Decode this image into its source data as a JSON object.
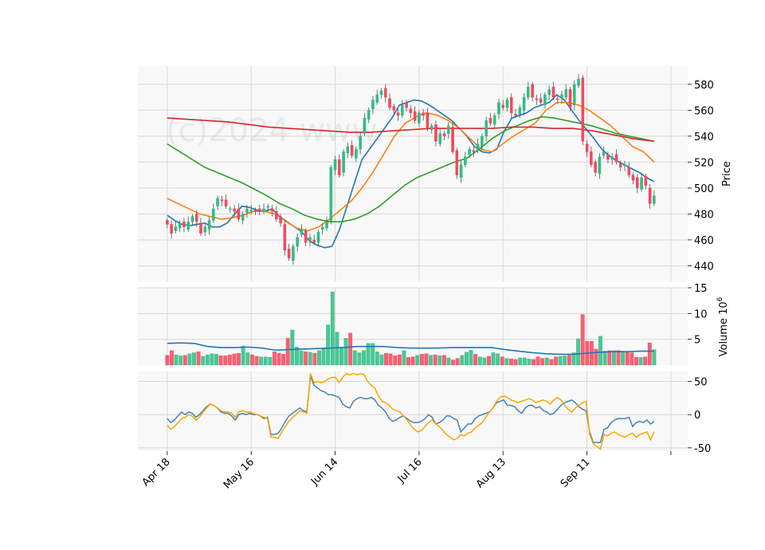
{
  "watermark": "(c)2024 www.",
  "chart_data": [
    {
      "type": "candlestick",
      "panel": "price",
      "ylabel": "Price",
      "ylim": [
        428,
        594
      ],
      "yticks": [
        440,
        460,
        480,
        500,
        520,
        540,
        560,
        580
      ],
      "xticks": [
        {
          "index": 0,
          "label": "Apr 18"
        },
        {
          "index": 20,
          "label": "May 16"
        },
        {
          "index": 40,
          "label": "Jun 14"
        },
        {
          "index": 60,
          "label": "Jul 16"
        },
        {
          "index": 80,
          "label": "Aug 13"
        },
        {
          "index": 100,
          "label": "Sep 11"
        },
        {
          "index": 120,
          "label": ""
        }
      ],
      "xlim": [
        -7,
        124
      ],
      "grid": true,
      "close": [
        472,
        465,
        470,
        473,
        470,
        474,
        478,
        474,
        465,
        470,
        475,
        484,
        492,
        490,
        486,
        484,
        482,
        476,
        480,
        484,
        483,
        482,
        483,
        484,
        486,
        482,
        476,
        473,
        452,
        446,
        455,
        462,
        468,
        458,
        462,
        458,
        466,
        470,
        474,
        516,
        522,
        510,
        528,
        532,
        525,
        530,
        540,
        554,
        560,
        568,
        572,
        575,
        570,
        562,
        560,
        556,
        564,
        562,
        558,
        552,
        558,
        556,
        546,
        548,
        536,
        542,
        540,
        548,
        528,
        510,
        518,
        524,
        530,
        528,
        534,
        540,
        552,
        550,
        556,
        566,
        562,
        568,
        558,
        556,
        562,
        570,
        578,
        570,
        568,
        566,
        572,
        576,
        570,
        568,
        572,
        576,
        562,
        580,
        584,
        536,
        528,
        518,
        512,
        524,
        528,
        522,
        524,
        520,
        516,
        518,
        510,
        506,
        500,
        508,
        502,
        488,
        494
      ],
      "ma": [
        {
          "color": "#1f77b4",
          "values": [
            479,
            475,
            472,
            471,
            472,
            473,
            470,
            470,
            473,
            480,
            486,
            485,
            483,
            482,
            484,
            478,
            474,
            470,
            466,
            459,
            456,
            454,
            455,
            468,
            486,
            504,
            522,
            530,
            538,
            546,
            554,
            564,
            566,
            568,
            567,
            564,
            560,
            556,
            552,
            546,
            540,
            532,
            528,
            527,
            530,
            544,
            554,
            556,
            558,
            562,
            564,
            566,
            572,
            568,
            560,
            552,
            545,
            538,
            530,
            525,
            521,
            518,
            515,
            512,
            508,
            505
          ]
        },
        {
          "color": "#ff7f0e",
          "values": [
            492,
            488,
            484,
            480,
            478,
            476,
            477,
            479,
            482,
            482,
            480,
            474,
            469,
            467,
            470,
            476,
            483,
            490,
            500,
            512,
            526,
            540,
            550,
            555,
            558,
            556,
            552,
            546,
            538,
            530,
            528,
            534,
            540,
            545,
            550,
            560,
            566,
            566,
            564,
            560,
            554,
            548,
            540,
            532,
            528,
            520
          ]
        },
        {
          "color": "#2ca02c",
          "values": [
            534,
            528,
            522,
            516,
            512,
            508,
            504,
            499,
            494,
            488,
            484,
            479,
            476,
            474,
            474,
            476,
            480,
            486,
            494,
            502,
            508,
            512,
            516,
            520,
            523,
            530,
            538,
            544,
            548,
            552,
            555,
            554,
            552,
            550,
            548,
            545,
            542,
            540,
            538,
            536
          ]
        },
        {
          "color": "#d62728",
          "values": [
            554,
            553,
            552,
            551,
            549,
            547,
            546,
            545,
            544,
            543,
            543,
            544,
            545,
            546,
            546,
            546,
            546,
            547,
            547,
            546,
            546,
            544,
            541,
            538,
            536
          ]
        }
      ]
    },
    {
      "type": "bar",
      "panel": "volume",
      "ylabel": "Volume  10",
      "ylabel_exponent": "6",
      "ylim": [
        0,
        15
      ],
      "yticks": [
        5,
        10,
        15
      ],
      "values": [
        1.9,
        2.8,
        2.0,
        1.8,
        1.9,
        2.2,
        2.4,
        2.6,
        1.7,
        2.0,
        2.2,
        2.1,
        1.8,
        1.8,
        2.0,
        2.2,
        2.3,
        3.7,
        2.4,
        2.0,
        1.7,
        1.6,
        1.6,
        1.5,
        2.6,
        2.3,
        2.1,
        5.2,
        6.8,
        3.5,
        2.8,
        2.6,
        2.5,
        2.3,
        2.8,
        3.2,
        7.8,
        14.2,
        6.4,
        3.5,
        5.2,
        6.2,
        2.8,
        2.4,
        2.8,
        4.2,
        4.2,
        2.6,
        2.0,
        2.3,
        2.2,
        1.8,
        2.0,
        2.8,
        1.5,
        1.6,
        1.9,
        2.1,
        2.2,
        1.9,
        2.0,
        1.8,
        1.9,
        1.4,
        1.0,
        1.3,
        1.9,
        2.5,
        2.9,
        2.1,
        1.6,
        1.4,
        1.7,
        2.4,
        2.2,
        1.6,
        1.3,
        1.2,
        1.1,
        1.4,
        1.4,
        1.2,
        1.1,
        1.6,
        1.3,
        1.4,
        1.1,
        1.6,
        1.7,
        1.8,
        1.9,
        2.4,
        5.1,
        9.8,
        4.6,
        4.6,
        3.1,
        5.6,
        2.7,
        2.8,
        2.8,
        2.8,
        2.7,
        2.5,
        2.4,
        1.5,
        1.5,
        1.6,
        4.3,
        3.0
      ],
      "up_color": "#2ebd85",
      "down_color": "#f6465d",
      "avg_line": [
        4.2,
        4.3,
        4.2,
        3.6,
        3.4,
        3.4,
        3.5,
        3.3,
        2.9,
        3.0,
        3.1,
        3.2,
        3.3,
        3.4,
        3.6,
        3.6,
        3.6,
        3.4,
        3.3,
        3.3,
        3.3,
        3.4,
        3.4,
        3.4,
        3.4,
        3.0,
        2.7,
        2.4,
        2.2,
        2.1,
        2.1,
        2.3,
        2.5,
        2.6,
        2.6,
        2.7,
        2.7
      ]
    },
    {
      "type": "line",
      "panel": "oscillator",
      "ylim": [
        -55,
        65
      ],
      "yticks": [
        -50,
        0,
        50
      ],
      "series": [
        {
          "color": "#4682b4",
          "values": [
            -6,
            -12,
            -8,
            -2,
            4,
            0,
            4,
            2,
            -4,
            0,
            6,
            12,
            16,
            14,
            10,
            4,
            2,
            2,
            -2,
            -8,
            0,
            2,
            0,
            2,
            0,
            0,
            -2,
            -6,
            -4,
            -30,
            -30,
            -28,
            -20,
            -10,
            -2,
            2,
            6,
            10,
            6,
            4,
            58,
            44,
            40,
            36,
            34,
            30,
            30,
            28,
            26,
            16,
            12,
            10,
            20,
            24,
            26,
            24,
            24,
            26,
            22,
            14,
            10,
            4,
            -6,
            -10,
            -8,
            -4,
            -2,
            -6,
            -10,
            -12,
            -12,
            -10,
            -6,
            0,
            -4,
            -14,
            -12,
            -8,
            -2,
            -2,
            -6,
            -8,
            -26,
            -20,
            -14,
            -14,
            -6,
            -2,
            0,
            2,
            4,
            10,
            18,
            20,
            22,
            14,
            14,
            12,
            6,
            2,
            10,
            14,
            14,
            10,
            12,
            6,
            4,
            0,
            2,
            8,
            14,
            18,
            20,
            22,
            18,
            12,
            8,
            6,
            -26,
            -42,
            -42,
            -42,
            -22,
            -20,
            -12,
            -8,
            -6,
            -6,
            -6,
            -4,
            -18,
            -12,
            -10,
            -12,
            -8,
            -14,
            -10
          ]
        },
        {
          "color": "#ffa500",
          "values": [
            -16,
            -22,
            -18,
            -12,
            -6,
            -4,
            0,
            -2,
            -8,
            -4,
            4,
            10,
            16,
            14,
            10,
            6,
            4,
            4,
            2,
            -4,
            4,
            6,
            4,
            4,
            2,
            0,
            -2,
            -4,
            -6,
            -34,
            -34,
            -36,
            -26,
            -18,
            -10,
            -4,
            0,
            6,
            4,
            2,
            62,
            48,
            50,
            48,
            50,
            54,
            56,
            56,
            48,
            56,
            62,
            60,
            62,
            60,
            62,
            60,
            50,
            44,
            40,
            28,
            20,
            18,
            14,
            8,
            6,
            4,
            -2,
            -8,
            -16,
            -22,
            -26,
            -24,
            -18,
            -12,
            -8,
            -14,
            -18,
            -24,
            -30,
            -34,
            -38,
            -36,
            -30,
            -32,
            -28,
            -26,
            -20,
            -16,
            -12,
            -4,
            4,
            10,
            20,
            26,
            28,
            26,
            22,
            20,
            18,
            20,
            22,
            24,
            22,
            18,
            20,
            22,
            20,
            16,
            22,
            26,
            22,
            14,
            8,
            4,
            10,
            14,
            18,
            20,
            -30,
            -44,
            -48,
            -52,
            -30,
            -32,
            -28,
            -26,
            -30,
            -32,
            -34,
            -30,
            -28,
            -34,
            -30,
            -28,
            -26,
            -38,
            -26
          ]
        }
      ]
    }
  ]
}
